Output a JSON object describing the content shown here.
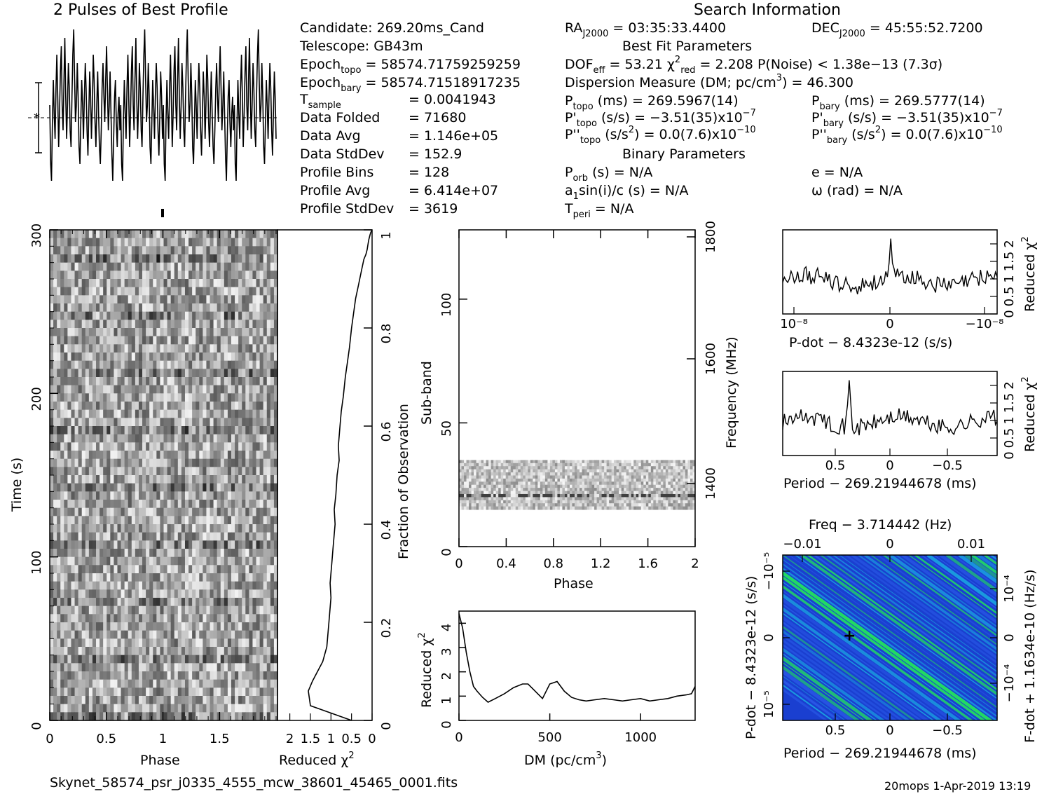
{
  "titles": {
    "profile": "2 Pulses of Best Profile",
    "search": "Search Information",
    "best_fit": "Best Fit Parameters",
    "binary": "Binary Parameters"
  },
  "info": {
    "candidate": "Candidate:  269.20ms_Cand",
    "telescope": "Telescope:  GB43m",
    "epoch_topo": "= 58574.71759259259",
    "epoch_bary": "= 58574.71518917235",
    "t_sample": "=   0.0041943",
    "data_folded_label": "Data Folded",
    "data_folded": "=   71680",
    "data_avg_label": "Data Avg",
    "data_avg": "=   1.146e+05",
    "data_stddev_label": "Data StdDev",
    "data_stddev": "=   152.9",
    "profile_bins_label": "Profile Bins",
    "profile_bins": "=   128",
    "profile_avg_label": "Profile Avg",
    "profile_avg": "=   6.414e+07",
    "profile_stddev_label": "Profile StdDev",
    "profile_stddev": "=   3619",
    "ra": "= 03:35:33.4400",
    "dec": "= 45:55:52.7200",
    "dof": "= 53.21",
    "chi2": "= 2.208",
    "pnoise": "P(Noise) < 1.38e−13   (7.3σ)",
    "dm": "Dispersion Measure (DM; pc/cm",
    "dm_val": ") = 46.300",
    "ptopo": "(ms) =   269.5967(14)",
    "pbary": "(ms) =   269.5777(14)",
    "pdtopo": "(s/s) = −3.51(35)x10",
    "pdbary": "(s/s) = −3.51(35)x10",
    "pdexp": "−7",
    "pddtopo": "(s/s",
    "pddtopo2": ") = 0.0(7.6)x10",
    "pddexp": "−10",
    "porb": "(s) = N/A",
    "ecc": "e = N/A",
    "a1": "a",
    "a1rest": "sin(i)/c (s) = N/A",
    "omega": "ω (rad) = N/A",
    "tperi": "= N/A"
  },
  "labels": {
    "time": "Time (s)",
    "phase": "Phase",
    "reduced": "Reduced χ",
    "fraction": "Fraction of Observation",
    "subband": "Sub-band",
    "frequency": "Frequency (MHz)",
    "dm_axis": "DM (pc/cm",
    "pdot_axis": "P-dot − 8.4323e-12 (s/s)",
    "period_axis": "Period − 269.21944678 (ms)",
    "freq_axis": "Freq − 3.714442 (Hz)",
    "pdot_left": "P-dot − 8.4323e-12 (s/s)",
    "fdot_right": "F-dot + 1.1634e-10 (Hz/s)",
    "filename": "Skynet_58574_psr_j0335_4555_mcw_38601_45465_0001.fits",
    "stamp": "20mops   1-Apr-2019 13:19"
  },
  "colors": {
    "ppdot_base": "#1a3fd0",
    "ppdot_mid": "#1aa0e0",
    "ppdot_high": "#22e060"
  },
  "chart_data": [
    {
      "type": "line",
      "name": "profile",
      "title": "2 Pulses of Best Profile",
      "xlim": [
        0,
        2
      ],
      "bins": 256,
      "values": [
        0.55,
        0.2,
        0.1,
        0.45,
        0.7,
        0.5,
        0.35,
        0.65,
        0.85,
        0.6,
        0.3,
        0.5,
        0.75,
        0.9,
        0.55,
        0.4,
        0.7,
        0.95,
        0.6,
        0.35,
        0.55,
        0.8,
        0.65,
        0.4,
        0.3,
        0.6,
        0.85,
        1.0,
        0.7,
        0.45,
        0.55,
        0.8,
        0.6,
        0.3,
        0.2,
        0.45,
        0.7,
        0.55,
        0.35,
        0.6,
        0.8,
        0.65,
        0.4,
        0.25,
        0.5,
        0.75,
        0.6,
        0.35,
        0.55,
        0.85,
        0.7,
        0.45,
        0.3,
        0.55,
        0.75,
        0.5,
        0.3,
        0.2,
        0.4,
        0.65,
        0.8,
        0.6,
        0.45,
        0.7,
        0.9,
        0.65,
        0.4,
        0.55,
        0.75,
        0.5,
        0.25,
        0.1,
        0.35,
        0.6,
        0.7,
        0.45,
        0.3,
        0.5,
        0.6,
        0.4,
        0.55,
        0.2,
        0.1,
        0.45,
        0.7,
        0.5,
        0.35,
        0.65,
        0.85,
        0.6,
        0.3,
        0.5,
        0.75,
        0.9,
        0.55,
        0.4,
        0.7,
        0.95,
        0.6,
        0.35,
        0.55,
        0.8,
        0.65,
        0.4,
        0.3,
        0.6,
        0.85,
        1.0,
        0.7,
        0.45,
        0.55,
        0.8,
        0.6,
        0.3,
        0.2,
        0.45,
        0.7,
        0.55,
        0.35,
        0.6,
        0.8,
        0.65,
        0.4,
        0.25,
        0.5,
        0.75,
        0.6,
        0.35
      ]
    },
    {
      "type": "heatmap",
      "name": "time-phase",
      "xlabel": "Phase",
      "ylabel": "Time (s)",
      "xlim": [
        0,
        2
      ],
      "ylim": [
        0,
        300
      ],
      "xticks": [
        "0",
        "0.5",
        "1",
        "1.5"
      ],
      "yticks": [
        "0",
        "100",
        "200",
        "300"
      ]
    },
    {
      "type": "line",
      "name": "time-chi2",
      "xlabel": "Reduced χ²",
      "ylabel": "Fraction of Observation",
      "xticks": [
        "2",
        "1.5",
        "1",
        "0.5",
        "0"
      ],
      "yticks": [
        "0",
        "0.2",
        "0.4",
        "0.6",
        "0.8",
        "1"
      ],
      "x": [
        0.5,
        1.5,
        1.55,
        1.45,
        1.2,
        1.1,
        1.05,
        1.0,
        1.02,
        0.98,
        0.95,
        0.9,
        0.92,
        0.88,
        0.85,
        0.8,
        0.82,
        0.78,
        0.75,
        0.7,
        0.65,
        0.6,
        0.55,
        0.5,
        0.45,
        0.4,
        0.35,
        0.3,
        0.25,
        0.2,
        0.15,
        0.12,
        0.1,
        0.08,
        0.05,
        0.03,
        0.0
      ],
      "y": [
        0,
        0.03,
        0.06,
        0.08,
        0.12,
        0.15,
        0.2,
        0.25,
        0.28,
        0.32,
        0.35,
        0.4,
        0.43,
        0.46,
        0.5,
        0.53,
        0.56,
        0.6,
        0.63,
        0.66,
        0.7,
        0.73,
        0.76,
        0.8,
        0.83,
        0.86,
        0.88,
        0.9,
        0.92,
        0.94,
        0.95,
        0.96,
        0.97,
        0.98,
        0.99,
        0.995,
        1.0
      ]
    },
    {
      "type": "heatmap",
      "name": "subband-phase",
      "xlabel": "Phase",
      "ylabel": "Sub-band",
      "xticks": [
        "0",
        "0.4",
        "0.8",
        "1.2",
        "1.6",
        "2"
      ],
      "yticks": [
        "0",
        "50",
        "100"
      ],
      "freq_ticks": [
        "1400",
        "1600",
        "1800"
      ],
      "ylim": [
        0,
        128
      ],
      "band_lo": 15,
      "band_hi": 35
    },
    {
      "type": "line",
      "name": "dm-chi2",
      "xlabel": "DM (pc/cm³)",
      "ylabel": "Reduced χ²",
      "xlim": [
        0,
        1300
      ],
      "ylim": [
        0,
        4.5
      ],
      "xticks": [
        "0",
        "500",
        "1000"
      ],
      "yticks": [
        "0",
        "1",
        "2",
        "3",
        "4"
      ],
      "x": [
        0,
        20,
        40,
        60,
        80,
        100,
        130,
        160,
        200,
        250,
        300,
        350,
        380,
        420,
        460,
        500,
        540,
        580,
        620,
        660,
        700,
        750,
        800,
        850,
        900,
        950,
        1000,
        1050,
        1100,
        1150,
        1200,
        1250,
        1280,
        1300
      ],
      "y": [
        4.4,
        3.8,
        2.8,
        2.0,
        1.4,
        1.2,
        0.95,
        0.75,
        0.9,
        1.1,
        1.35,
        1.5,
        1.5,
        1.2,
        0.9,
        1.5,
        1.6,
        1.2,
        0.95,
        0.85,
        0.8,
        0.85,
        0.9,
        0.85,
        0.8,
        0.85,
        0.9,
        0.8,
        0.85,
        0.9,
        1.0,
        1.05,
        1.1,
        1.4
      ]
    },
    {
      "type": "line",
      "name": "pdot-chi2",
      "xlabel": "P-dot − 8.4323e-12 (s/s)",
      "ylabel": "Reduced χ²",
      "xticks": [
        "10⁻⁸",
        "0",
        "−10⁻⁸"
      ],
      "yticks": [
        "0",
        "0.5",
        "1",
        "1.5",
        "2"
      ]
    },
    {
      "type": "line",
      "name": "period-chi2",
      "xlabel": "Period − 269.21944678 (ms)",
      "ylabel": "Reduced χ²",
      "xticks": [
        "0.5",
        "0",
        "−0.5"
      ],
      "yticks": [
        "0",
        "0.5",
        "1",
        "1.5",
        "2"
      ]
    },
    {
      "type": "heatmap",
      "name": "p-pdot",
      "xlabel": "Period − 269.21944678 (ms)",
      "ylabel": "P-dot − 8.4323e-12 (s/s)",
      "top_label": "Freq − 3.714442 (Hz)",
      "right_label": "F-dot + 1.1634e-10 (Hz/s)",
      "xticks": [
        "0.5",
        "0",
        "−0.5"
      ],
      "top_ticks": [
        "−0.01",
        "0",
        "0.01"
      ],
      "yticks": [
        "−10⁻⁵",
        "0",
        "10⁻⁵"
      ],
      "right_ticks": [
        "10⁻⁴",
        "0",
        "−10⁻⁴"
      ]
    }
  ]
}
